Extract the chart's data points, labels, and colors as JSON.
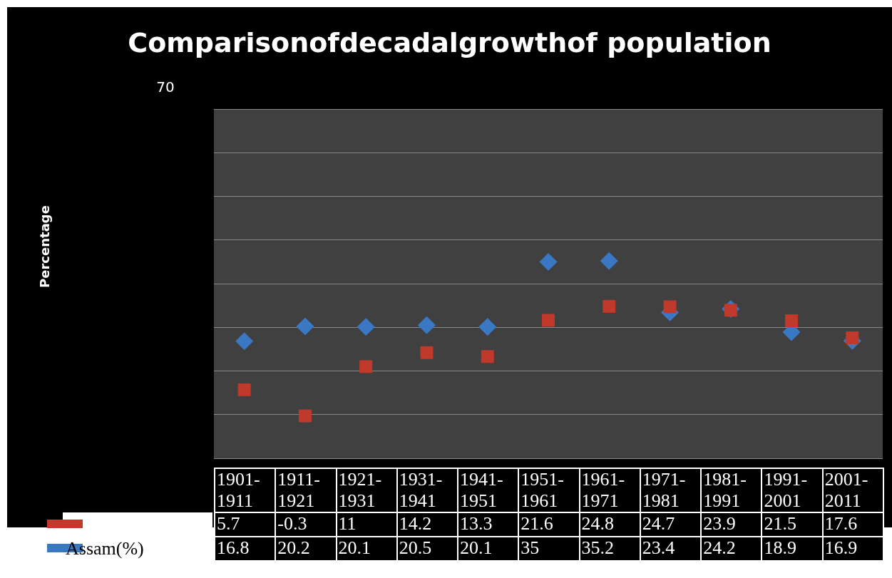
{
  "chart_data": {
    "type": "scatter",
    "title": "Comparisonofdecadalgrowthof population",
    "categories": [
      "1901-1911",
      "1911-1921",
      "1921-1931",
      "1931-1941",
      "1941-1951",
      "1951-1961",
      "1961-1971",
      "1971-1981",
      "1981-1991",
      "1991-2001",
      "2001-2011"
    ],
    "series": [
      {
        "color": "#c0392b",
        "marker": "square",
        "values": [
          5.7,
          -0.3,
          11,
          14.2,
          13.3,
          21.6,
          24.8,
          24.7,
          23.9,
          21.5,
          17.6
        ]
      },
      {
        "name": "Assam(%)",
        "color": "#3a78c3",
        "marker": "diamond",
        "values": [
          16.8,
          20.2,
          20.1,
          20.5,
          20.1,
          35,
          35.2,
          23.4,
          24.2,
          18.9,
          16.9
        ]
      }
    ],
    "ylim": [
      -10,
      70
    ],
    "annotations": [
      "70",
      "Percentage"
    ],
    "grid": "y",
    "legend": "bottom",
    "data_labels": true
  }
}
